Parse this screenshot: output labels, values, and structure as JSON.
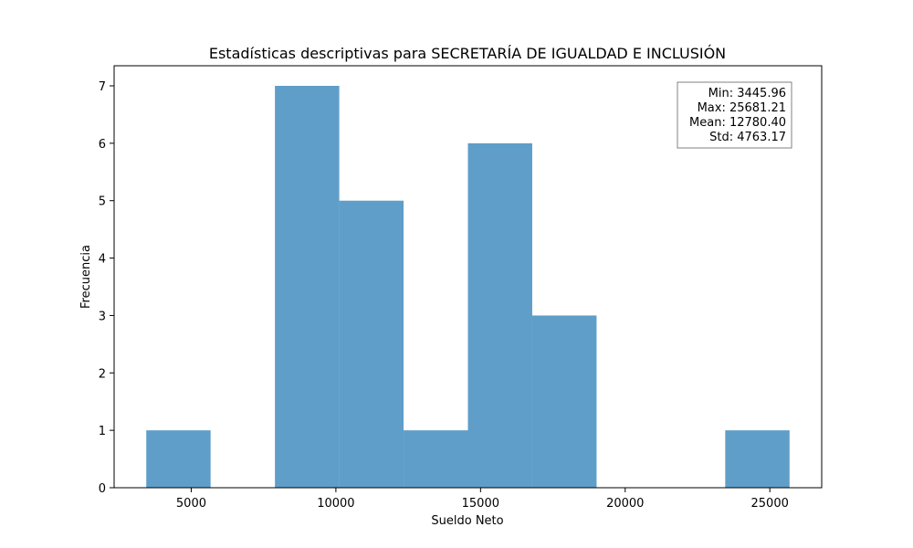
{
  "chart_data": {
    "type": "bar",
    "title": "Estadísticas descriptivas para SECRETARÍA DE IGUALDAD E INCLUSIÓN",
    "xlabel": "Sueldo Neto",
    "ylabel": "Frecuencia",
    "xlim": [
      2334.7,
      26792.5
    ],
    "ylim": [
      0,
      7.35
    ],
    "xticks": [
      5000,
      10000,
      15000,
      20000,
      25000
    ],
    "yticks": [
      0,
      1,
      2,
      3,
      4,
      5,
      6,
      7
    ],
    "bins": [
      {
        "x0": 3445.96,
        "x1": 5669.49,
        "count": 1
      },
      {
        "x0": 5669.49,
        "x1": 7893.01,
        "count": 0
      },
      {
        "x0": 7893.01,
        "x1": 10116.54,
        "count": 7
      },
      {
        "x0": 10116.54,
        "x1": 12340.06,
        "count": 5
      },
      {
        "x0": 12340.06,
        "x1": 14563.59,
        "count": 1
      },
      {
        "x0": 14563.59,
        "x1": 16787.11,
        "count": 6
      },
      {
        "x0": 16787.11,
        "x1": 19010.64,
        "count": 3
      },
      {
        "x0": 19010.64,
        "x1": 21234.16,
        "count": 0
      },
      {
        "x0": 21234.16,
        "x1": 23457.69,
        "count": 0
      },
      {
        "x0": 23457.69,
        "x1": 25681.21,
        "count": 1
      }
    ],
    "bar_color": "#5f9ec9",
    "grid": false,
    "stats_box": {
      "position": "top-right",
      "lines": [
        "Min: 3445.96",
        "Max: 25681.21",
        "Mean: 12780.40",
        "Std: 4763.17"
      ]
    }
  }
}
